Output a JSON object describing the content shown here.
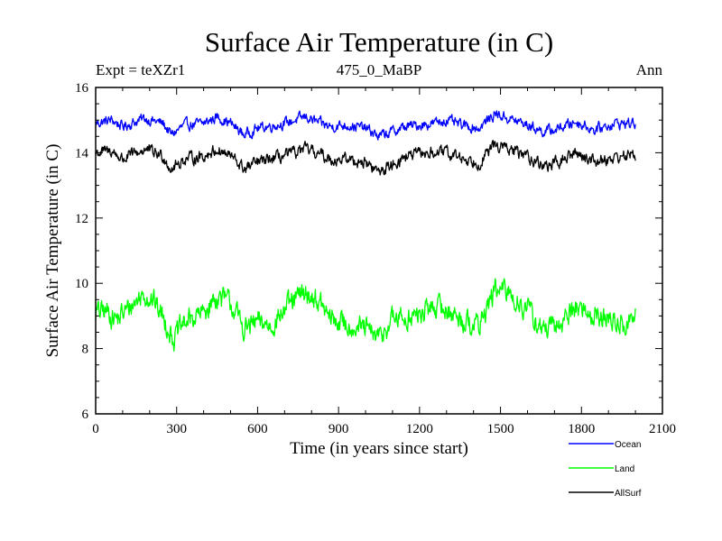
{
  "chart_data": {
    "type": "line",
    "title": "Surface Air Temperature (in C)",
    "subtitle": "475_0_MaBP",
    "expt_label": "Expt = teXZr1",
    "period_label": "Ann",
    "xlabel": "Time (in years since start)",
    "ylabel": "Surface Air Temperature (in C)",
    "xlim": [
      0,
      2100
    ],
    "ylim": [
      6,
      16
    ],
    "x_ticks": [
      0,
      300,
      600,
      900,
      1200,
      1500,
      1800,
      2100
    ],
    "x_tick_labels": [
      "0",
      "300",
      "600",
      "900",
      "1200",
      "1500",
      "1800",
      "2100"
    ],
    "y_ticks": [
      6,
      8,
      10,
      12,
      14,
      16
    ],
    "y_tick_labels": [
      "6",
      "8",
      "10",
      "12",
      "14",
      "16"
    ],
    "grid": false,
    "legend_position": "bottom-right",
    "x_range": [
      0,
      2000
    ],
    "series": [
      {
        "name": "Ocean",
        "color": "#0000ff",
        "noise": 0.13,
        "anchors": [
          [
            0,
            14.9
          ],
          [
            60,
            15.0
          ],
          [
            100,
            14.8
          ],
          [
            180,
            15.05
          ],
          [
            250,
            14.9
          ],
          [
            280,
            14.55
          ],
          [
            330,
            14.85
          ],
          [
            400,
            14.9
          ],
          [
            450,
            15.1
          ],
          [
            500,
            14.9
          ],
          [
            550,
            14.55
          ],
          [
            600,
            14.75
          ],
          [
            700,
            14.9
          ],
          [
            780,
            15.1
          ],
          [
            830,
            14.9
          ],
          [
            870,
            14.8
          ],
          [
            930,
            14.85
          ],
          [
            1000,
            14.75
          ],
          [
            1050,
            14.5
          ],
          [
            1150,
            14.8
          ],
          [
            1250,
            14.9
          ],
          [
            1300,
            15.0
          ],
          [
            1350,
            14.85
          ],
          [
            1420,
            14.75
          ],
          [
            1480,
            15.2
          ],
          [
            1530,
            15.05
          ],
          [
            1600,
            14.85
          ],
          [
            1660,
            14.65
          ],
          [
            1700,
            14.7
          ],
          [
            1780,
            14.95
          ],
          [
            1850,
            14.7
          ],
          [
            1920,
            14.9
          ],
          [
            2000,
            14.9
          ]
        ]
      },
      {
        "name": "Land",
        "color": "#00ff00",
        "noise": 0.28,
        "anchors": [
          [
            0,
            9.1
          ],
          [
            40,
            9.15
          ],
          [
            80,
            8.9
          ],
          [
            130,
            9.3
          ],
          [
            180,
            9.7
          ],
          [
            220,
            9.4
          ],
          [
            260,
            8.8
          ],
          [
            290,
            8.3
          ],
          [
            330,
            8.8
          ],
          [
            400,
            9.1
          ],
          [
            450,
            9.6
          ],
          [
            500,
            9.4
          ],
          [
            550,
            8.6
          ],
          [
            600,
            8.8
          ],
          [
            650,
            8.7
          ],
          [
            700,
            9.2
          ],
          [
            770,
            9.7
          ],
          [
            820,
            9.5
          ],
          [
            870,
            8.9
          ],
          [
            950,
            8.7
          ],
          [
            1000,
            8.6
          ],
          [
            1050,
            8.3
          ],
          [
            1100,
            8.9
          ],
          [
            1200,
            9.0
          ],
          [
            1250,
            9.3
          ],
          [
            1300,
            9.2
          ],
          [
            1350,
            8.9
          ],
          [
            1420,
            8.7
          ],
          [
            1480,
            9.8
          ],
          [
            1530,
            9.7
          ],
          [
            1600,
            9.2
          ],
          [
            1650,
            8.6
          ],
          [
            1700,
            8.6
          ],
          [
            1780,
            9.3
          ],
          [
            1850,
            9.0
          ],
          [
            1900,
            8.9
          ],
          [
            1960,
            8.7
          ],
          [
            2000,
            9.0
          ]
        ]
      },
      {
        "name": "AllSurf",
        "color": "#000000",
        "noise": 0.15,
        "anchors": [
          [
            0,
            14.0
          ],
          [
            60,
            14.05
          ],
          [
            100,
            13.8
          ],
          [
            180,
            14.1
          ],
          [
            250,
            13.9
          ],
          [
            280,
            13.5
          ],
          [
            330,
            13.8
          ],
          [
            400,
            13.9
          ],
          [
            450,
            14.1
          ],
          [
            500,
            13.9
          ],
          [
            550,
            13.5
          ],
          [
            600,
            13.7
          ],
          [
            700,
            13.9
          ],
          [
            780,
            14.1
          ],
          [
            830,
            13.95
          ],
          [
            870,
            13.8
          ],
          [
            930,
            13.8
          ],
          [
            1000,
            13.7
          ],
          [
            1050,
            13.4
          ],
          [
            1150,
            13.9
          ],
          [
            1250,
            14.0
          ],
          [
            1300,
            14.0
          ],
          [
            1350,
            13.85
          ],
          [
            1420,
            13.7
          ],
          [
            1480,
            14.25
          ],
          [
            1530,
            14.1
          ],
          [
            1600,
            13.9
          ],
          [
            1660,
            13.6
          ],
          [
            1700,
            13.65
          ],
          [
            1780,
            14.0
          ],
          [
            1850,
            13.75
          ],
          [
            1920,
            13.85
          ],
          [
            2000,
            13.95
          ]
        ]
      }
    ]
  }
}
